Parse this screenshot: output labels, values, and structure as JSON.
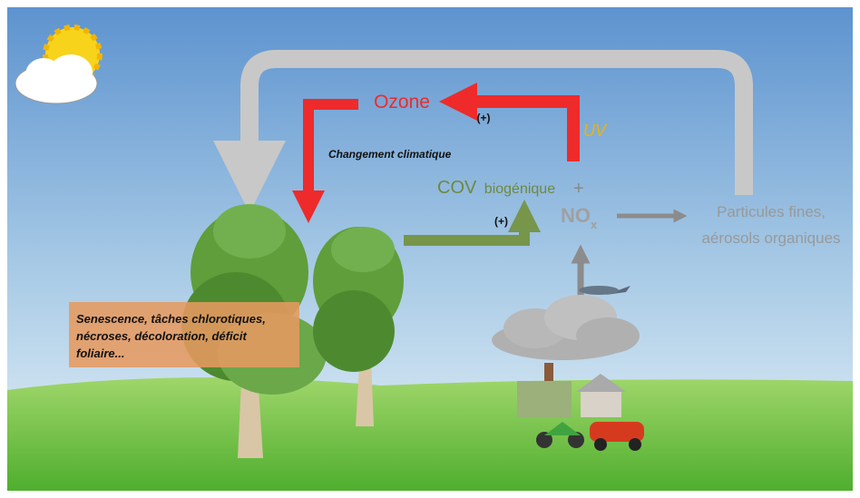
{
  "labels": {
    "ozone": "Ozone",
    "ozone_plus": "(+)",
    "uv": "UV",
    "climate": "Changement climatique",
    "cov": "COV",
    "cov_sub": "biogénique",
    "plus": "+",
    "cov_plus": "(+)",
    "nox": "NO",
    "nox_sub": "x",
    "particles": [
      "Particules fines,",
      "aérosols organiques"
    ],
    "symptoms": [
      "Senescence, tâches chlorotiques,",
      "nécroses, décoloration, déficit",
      "foliaire..."
    ]
  }
}
